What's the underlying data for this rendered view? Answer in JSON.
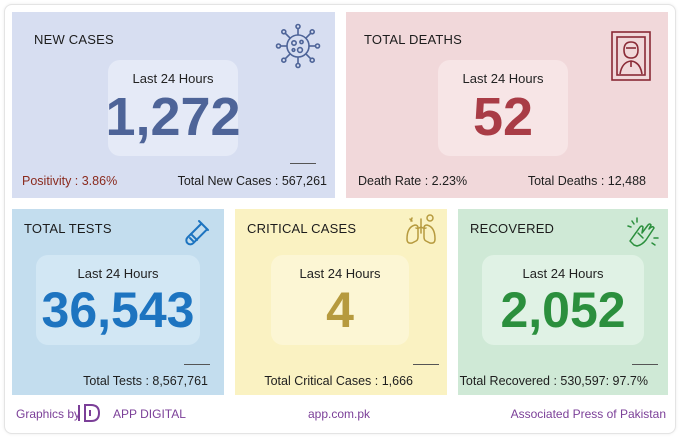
{
  "cards": {
    "new_cases": {
      "title": "NEW CASES",
      "period": "Last 24 Hours",
      "value": "1,272",
      "positivity": "Positivity : 3.86%",
      "total": "Total New Cases : 567,261",
      "icon": "virus-icon",
      "color": "#4e6498"
    },
    "total_deaths": {
      "title": "TOTAL DEATHS",
      "period": "Last 24 Hours",
      "value": "52",
      "rate": "Death Rate : 2.23%",
      "total": "Total Deaths : 12,488",
      "icon": "memorial-portrait-icon",
      "color": "#a93c46"
    },
    "total_tests": {
      "title": "TOTAL TESTS",
      "period": "Last 24 Hours",
      "value": "36,543",
      "total": "Total Tests : 8,567,761",
      "icon": "test-tube-icon",
      "color": "#1d74c0"
    },
    "critical_cases": {
      "title": "CRITICAL CASES",
      "period": "Last 24 Hours",
      "value": "4",
      "total": "Total Critical Cases : 1,666",
      "icon": "lungs-icon",
      "color": "#b69a3e"
    },
    "recovered": {
      "title": "RECOVERED",
      "period": "Last 24 Hours",
      "value": "2,052",
      "total": "Total Recovered : 530,597: 97.7%",
      "icon": "clapping-hands-icon",
      "color": "#2b8f3d"
    }
  },
  "footer": {
    "graphics_by": "Graphics by",
    "brand": "APP DIGITAL",
    "website": "app.com.pk",
    "agency": "Associated Press of Pakistan",
    "accent": "#7b3f98"
  }
}
